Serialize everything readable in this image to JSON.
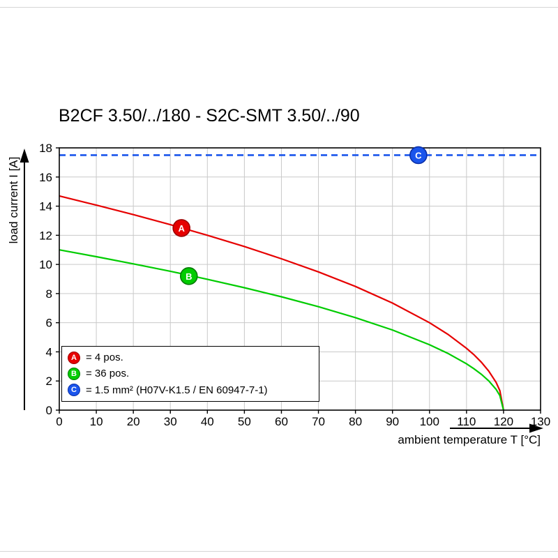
{
  "title": "B2CF 3.50/../180 - S2C-SMT 3.50/../90",
  "chart_data": {
    "type": "line",
    "title": "B2CF 3.50/../180 - S2C-SMT 3.50/../90",
    "xlabel": "ambient temperature T [°C]",
    "ylabel": "load current I [A]",
    "xlim": [
      0,
      130
    ],
    "ylim": [
      0,
      18
    ],
    "x_ticks": [
      "0",
      "10",
      "20",
      "30",
      "40",
      "50",
      "60",
      "70",
      "80",
      "90",
      "100",
      "110",
      "120",
      "130"
    ],
    "x_tick_values": [
      0,
      10,
      20,
      30,
      40,
      50,
      60,
      70,
      80,
      90,
      100,
      110,
      120,
      130
    ],
    "y_ticks": [
      "0",
      "2",
      "4",
      "6",
      "8",
      "10",
      "12",
      "14",
      "16",
      "18"
    ],
    "y_tick_values": [
      0,
      2,
      4,
      6,
      8,
      10,
      12,
      14,
      16,
      18
    ],
    "grid": true,
    "legend_position": "lower-left",
    "series": [
      {
        "name": "A",
        "label": "= 4 pos.",
        "color": "#e60000",
        "edge": "#9e0000",
        "style": "solid",
        "marker": {
          "x": 33,
          "y": 12.5
        },
        "x": [
          0,
          10,
          20,
          30,
          40,
          50,
          60,
          70,
          80,
          90,
          100,
          105,
          110,
          112,
          114,
          116,
          118,
          119,
          120
        ],
        "y": [
          14.7,
          14.07,
          13.42,
          12.73,
          12.0,
          11.23,
          10.39,
          9.49,
          8.49,
          7.35,
          6.0,
          5.2,
          4.24,
          3.8,
          3.29,
          2.68,
          1.9,
          1.34,
          0
        ]
      },
      {
        "name": "B",
        "label": "= 36 pos.",
        "color": "#00cc00",
        "edge": "#007a00",
        "style": "solid",
        "marker": {
          "x": 35,
          "y": 9.2
        },
        "x": [
          0,
          10,
          20,
          30,
          40,
          50,
          60,
          70,
          80,
          90,
          100,
          105,
          110,
          112,
          114,
          116,
          118,
          119,
          120
        ],
        "y": [
          11.0,
          10.53,
          10.04,
          9.53,
          8.98,
          8.4,
          7.78,
          7.1,
          6.35,
          5.5,
          4.49,
          3.89,
          3.18,
          2.84,
          2.46,
          2.01,
          1.42,
          1.0,
          0
        ]
      },
      {
        "name": "C",
        "label": "= 1.5 mm² (H07V-K1.5 / EN 60947-7-1)",
        "color": "#1a55ec",
        "edge": "#0a2fa8",
        "style": "dashed",
        "marker": {
          "x": 97,
          "y": 17.5
        },
        "x": [
          0,
          130
        ],
        "y": [
          17.5,
          17.5
        ]
      }
    ]
  }
}
